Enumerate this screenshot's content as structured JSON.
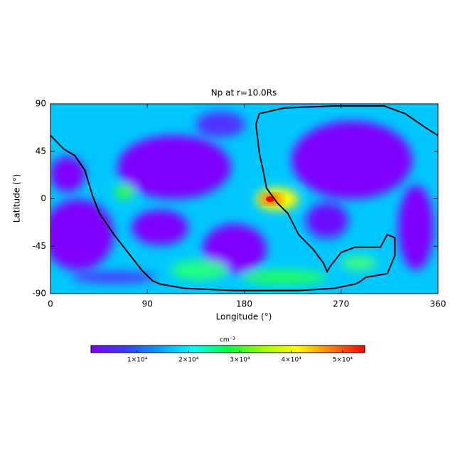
{
  "chart_data": {
    "type": "heatmap",
    "title": "Np at r=10.0Rs",
    "x_label": "Longitude (°)",
    "y_label": "Latitude (°)",
    "xlim": [
      0,
      360
    ],
    "ylim": [
      -90,
      90
    ],
    "xticks": [
      0,
      90,
      180,
      270,
      360
    ],
    "yticks": [
      90,
      45,
      0,
      -45,
      -90
    ],
    "colorbar_label": "cm⁻³",
    "zlim": [
      1000,
      54300
    ],
    "zticks": [
      {
        "value": 10000,
        "label": "1×10⁴"
      },
      {
        "value": 20000,
        "label": "2×10⁴"
      },
      {
        "value": 30000,
        "label": "3×10⁴"
      },
      {
        "value": 40000,
        "label": "4×10⁴"
      },
      {
        "value": 50000,
        "label": "5×10⁴"
      }
    ],
    "colormap": [
      "#7f00ff",
      "#3a3aff",
      "#00a0ff",
      "#00ffff",
      "#00ff40",
      "#a0ff00",
      "#ffff00",
      "#ff8000",
      "#ff0000"
    ],
    "neutral_line": {
      "color": "#000000",
      "x": [
        0,
        12.5,
        22.5,
        32,
        39,
        45.6,
        59,
        72,
        85,
        95,
        102,
        125,
        171,
        230.5,
        263.5,
        283,
        287,
        293,
        313,
        320,
        320,
        313,
        306.5,
        283,
        270,
        260,
        257,
        253.6,
        243.7,
        230.5,
        220.6,
        210.7,
        200.8,
        197.5,
        194,
        190.9,
        194,
        217,
        263.5,
        310,
        329.6,
        349,
        360
      ],
      "y": [
        60,
        47,
        41,
        27,
        3,
        -14,
        -34,
        -51,
        -68,
        -78,
        -81,
        -85,
        -87,
        -87,
        -85,
        -81,
        -79,
        -74.5,
        -71,
        -54,
        -37,
        -34,
        -46,
        -46,
        -51,
        -64,
        -69,
        -61,
        -47.5,
        -34,
        -14,
        -4,
        10,
        27,
        43.5,
        70.5,
        80.6,
        86,
        88,
        88,
        80.6,
        67,
        60
      ]
    }
  }
}
